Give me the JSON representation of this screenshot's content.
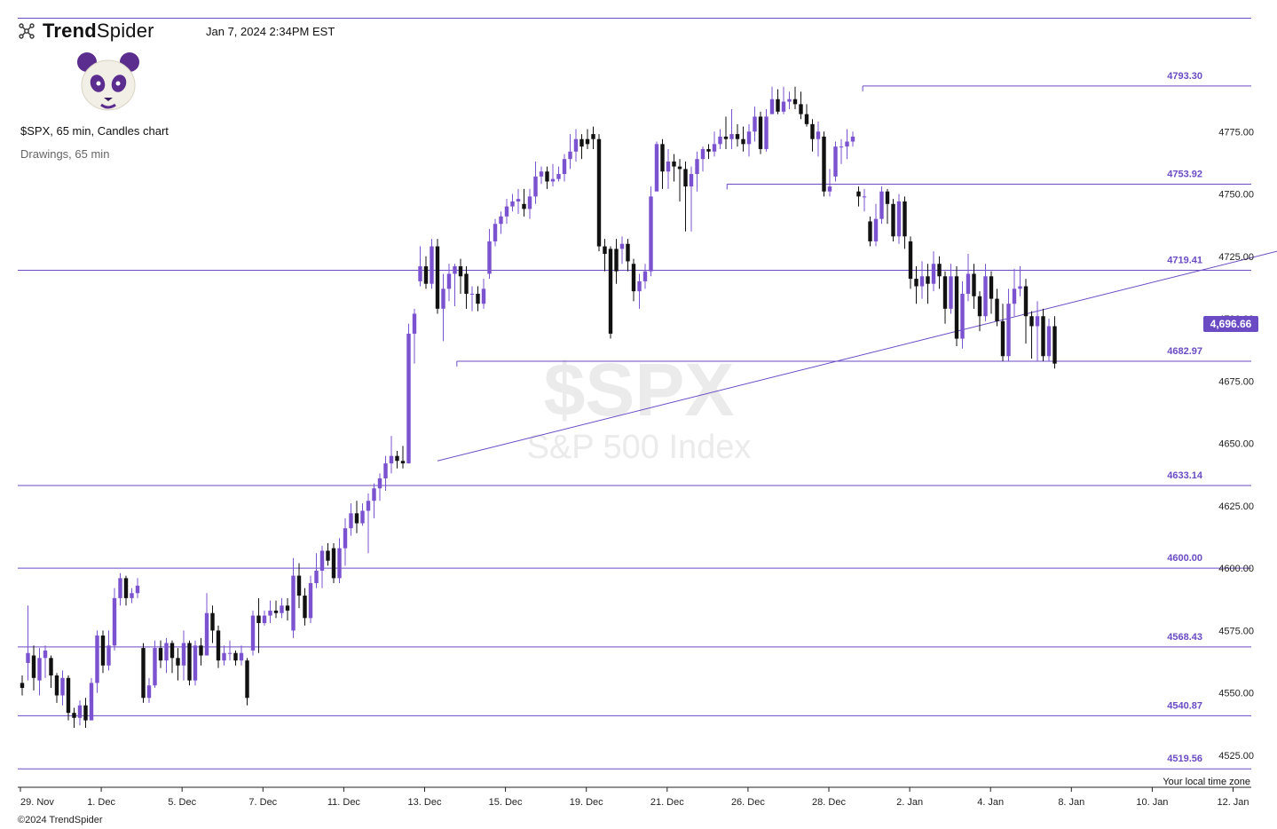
{
  "header": {
    "brand_bold": "Trend",
    "brand_light": "Spider",
    "timestamp": "Jan 7, 2024 2:34PM EST",
    "chart_title": "$SPX, 65 min, Candles chart",
    "drawings_label": "Drawings, 65 min"
  },
  "footer": {
    "copyright": "©2024 TrendSpider",
    "timezone_label": "Your local time zone"
  },
  "watermark": {
    "symbol": "$SPX",
    "name": "S&P 500 Index"
  },
  "last_price": "4,696.66",
  "colors": {
    "accent": "#6a4bc4",
    "bull": "#7b52d0",
    "bear": "#111111",
    "axis": "#222222"
  },
  "icons": {
    "logo": "trendspider-logo-icon",
    "avatar": "panda-avatar-icon"
  },
  "chart_data": {
    "type": "candlestick",
    "interval": "65 min",
    "ylim": [
      4510,
      4810
    ],
    "y_ticks": [
      "4525.00",
      "4550.00",
      "4575.00",
      "4600.00",
      "4625.00",
      "4650.00",
      "4675.00",
      "4700.00",
      "4725.00",
      "4750.00",
      "4775.00"
    ],
    "x_ticks": [
      "29. Nov",
      "1. Dec",
      "5. Dec",
      "7. Dec",
      "11. Dec",
      "13. Dec",
      "15. Dec",
      "19. Dec",
      "21. Dec",
      "26. Dec",
      "28. Dec",
      "2. Jan",
      "4. Jan",
      "8. Jan",
      "10. Jan",
      "12. Jan"
    ],
    "levels": [
      {
        "label": "4793.30",
        "value": 4793.3,
        "x_start": 0.685
      },
      {
        "label": "4753.92",
        "value": 4753.92,
        "x_start": 0.575
      },
      {
        "label": "4719.41",
        "value": 4719.41,
        "x_start": 0.0
      },
      {
        "label": "4682.97",
        "value": 4682.97,
        "x_start": 0.356
      },
      {
        "label": "4633.14",
        "value": 4633.14,
        "x_start": 0.0
      },
      {
        "label": "4600.00",
        "value": 4600.0,
        "x_start": 0.0
      },
      {
        "label": "4568.43",
        "value": 4568.43,
        "x_start": 0.0
      },
      {
        "label": "4540.87",
        "value": 4540.87,
        "x_start": 0.0
      },
      {
        "label": "4519.56",
        "value": 4519.56,
        "x_start": 0.0
      }
    ],
    "trendline": {
      "from": [
        14.4,
        4643
      ],
      "to": [
        57.7,
        4768
      ]
    },
    "candles": [
      [
        4554,
        4552,
        4557,
        4549
      ],
      [
        4562,
        4566,
        4585,
        4555
      ],
      [
        4565,
        4556,
        4569,
        4551
      ],
      [
        4555,
        4564,
        4568,
        4549
      ],
      [
        4564,
        4567,
        4569,
        4556
      ],
      [
        4564,
        4557,
        4565,
        4552
      ],
      [
        4557,
        4549,
        4558,
        4546
      ],
      [
        4549,
        4556,
        4559,
        4545
      ],
      [
        4556,
        4542,
        4557,
        4539
      ],
      [
        4542,
        4540,
        4544,
        4536
      ],
      [
        4540,
        4545,
        4547,
        4537
      ],
      [
        4545,
        4539,
        4548,
        4536
      ],
      [
        4539,
        4554,
        4556,
        4541
      ],
      [
        4554,
        4573,
        4575,
        4550
      ],
      [
        4573,
        4561,
        4575,
        4558
      ],
      [
        4561,
        4569,
        4575,
        4559
      ],
      [
        4569,
        4588,
        4592,
        4567
      ],
      [
        4588,
        4596,
        4598,
        4585
      ],
      [
        4596,
        4588,
        4597,
        4585
      ],
      [
        4588,
        4590,
        4592,
        4586
      ],
      [
        4590,
        4593,
        4596,
        4588
      ],
      [
        4568,
        4548,
        4570,
        4546
      ],
      [
        4548,
        4553,
        4556,
        4546
      ],
      [
        4553,
        4568,
        4571,
        4552
      ],
      [
        4568,
        4563,
        4571,
        4560
      ],
      [
        4563,
        4570,
        4572,
        4558
      ],
      [
        4570,
        4564,
        4571,
        4558
      ],
      [
        4564,
        4561,
        4568,
        4555
      ],
      [
        4561,
        4570,
        4575,
        4555
      ],
      [
        4570,
        4555,
        4571,
        4553
      ],
      [
        4555,
        4569,
        4571,
        4553
      ],
      [
        4569,
        4565,
        4572,
        4561
      ],
      [
        4565,
        4582,
        4590,
        4578
      ],
      [
        4582,
        4575,
        4585,
        4570
      ],
      [
        4575,
        4563,
        4577,
        4560
      ],
      [
        4563,
        4566,
        4569,
        4561
      ],
      [
        4566,
        4566,
        4571,
        4563
      ],
      [
        4566,
        4563,
        4567,
        4561
      ],
      [
        4563,
        4566,
        4569,
        4561
      ],
      [
        4563,
        4548,
        4564,
        4545
      ],
      [
        4567,
        4581,
        4583,
        4565
      ],
      [
        4581,
        4578,
        4588,
        4566
      ],
      [
        4578,
        4581,
        4583,
        4577
      ],
      [
        4581,
        4583,
        4587,
        4578
      ],
      [
        4583,
        4582,
        4587,
        4580
      ],
      [
        4582,
        4585,
        4588,
        4580
      ],
      [
        4585,
        4583,
        4588,
        4579
      ],
      [
        4575,
        4597,
        4604,
        4572
      ],
      [
        4597,
        4589,
        4602,
        4584
      ],
      [
        4589,
        4580,
        4592,
        4577
      ],
      [
        4580,
        4594,
        4597,
        4578
      ],
      [
        4594,
        4599,
        4606,
        4592
      ],
      [
        4599,
        4607,
        4609,
        4592
      ],
      [
        4607,
        4603,
        4610,
        4601
      ],
      [
        4608,
        4596,
        4610,
        4594
      ],
      [
        4596,
        4608,
        4612,
        4594
      ],
      [
        4608,
        4616,
        4620,
        4601
      ],
      [
        4616,
        4622,
        4626,
        4613
      ],
      [
        4622,
        4618,
        4627,
        4614
      ],
      [
        4618,
        4623,
        4626,
        4617
      ],
      [
        4623,
        4627,
        4630,
        4606
      ],
      [
        4627,
        4632,
        4634,
        4620
      ],
      [
        4632,
        4636,
        4638,
        4627
      ],
      [
        4636,
        4642,
        4645,
        4631
      ],
      [
        4642,
        4645,
        4653,
        4638
      ],
      [
        4645,
        4643,
        4647,
        4640
      ],
      [
        4643,
        4642,
        4649,
        4640
      ],
      [
        4642,
        4694,
        4698,
        4642
      ],
      [
        4694,
        4702,
        4704,
        4682
      ],
      [
        4715,
        4721,
        4729,
        4713
      ],
      [
        4721,
        4714,
        4725,
        4712
      ],
      [
        4714,
        4729,
        4732,
        4712
      ],
      [
        4729,
        4704,
        4732,
        4702
      ],
      [
        4704,
        4712,
        4718,
        4691
      ],
      [
        4712,
        4718,
        4722,
        4707
      ],
      [
        4718,
        4721,
        4722,
        4705
      ],
      [
        4721,
        4717,
        4724,
        4710
      ],
      [
        4718,
        4710,
        4721,
        4704
      ],
      [
        4710,
        4710,
        4713,
        4703
      ],
      [
        4710,
        4706,
        4713,
        4703
      ],
      [
        4706,
        4712,
        4716,
        4704
      ],
      [
        4718,
        4731,
        4736,
        4716
      ],
      [
        4731,
        4738,
        4740,
        4729
      ],
      [
        4738,
        4741,
        4743,
        4734
      ],
      [
        4741,
        4745,
        4748,
        4738
      ],
      [
        4745,
        4747,
        4750,
        4743
      ],
      [
        4747,
        4748,
        4752,
        4742
      ],
      [
        4746,
        4744,
        4752,
        4741
      ],
      [
        4744,
        4749,
        4752,
        4740
      ],
      [
        4749,
        4757,
        4763,
        4746
      ],
      [
        4757,
        4759,
        4761,
        4754
      ],
      [
        4759,
        4755,
        4761,
        4752
      ],
      [
        4755,
        4756,
        4762,
        4753
      ],
      [
        4756,
        4758,
        4761,
        4755
      ],
      [
        4758,
        4764,
        4766,
        4755
      ],
      [
        4764,
        4767,
        4774,
        4760
      ],
      [
        4767,
        4772,
        4776,
        4763
      ],
      [
        4772,
        4769,
        4774,
        4764
      ],
      [
        4772,
        4770,
        4776,
        4768
      ],
      [
        4774,
        4772,
        4777,
        4768
      ],
      [
        4772,
        4729,
        4774,
        4727
      ],
      [
        4729,
        4726,
        4732,
        4719
      ],
      [
        4728,
        4694,
        4729,
        4692
      ],
      [
        4728,
        4719,
        4732,
        4714
      ],
      [
        4728,
        4730,
        4733,
        4722
      ],
      [
        4730,
        4723,
        4732,
        4719
      ],
      [
        4722,
        4711,
        4724,
        4707
      ],
      [
        4711,
        4715,
        4718,
        4704
      ],
      [
        4715,
        4719,
        4722,
        4712
      ],
      [
        4719,
        4749,
        4753,
        4717
      ],
      [
        4751,
        4770,
        4771,
        4754
      ],
      [
        4770,
        4759,
        4772,
        4752
      ],
      [
        4759,
        4763,
        4768,
        4752
      ],
      [
        4763,
        4761,
        4766,
        4755
      ],
      [
        4761,
        4760,
        4764,
        4747
      ],
      [
        4760,
        4753,
        4763,
        4735
      ],
      [
        4753,
        4758,
        4761,
        4735
      ],
      [
        4758,
        4764,
        4767,
        4751
      ],
      [
        4764,
        4768,
        4769,
        4759
      ],
      [
        4768,
        4767,
        4770,
        4764
      ],
      [
        4767,
        4770,
        4775,
        4765
      ],
      [
        4770,
        4773,
        4776,
        4768
      ],
      [
        4773,
        4772,
        4781,
        4768
      ],
      [
        4772,
        4774,
        4784,
        4768
      ],
      [
        4774,
        4772,
        4778,
        4769
      ],
      [
        4772,
        4770,
        4777,
        4767
      ],
      [
        4770,
        4775,
        4778,
        4765
      ],
      [
        4775,
        4781,
        4785,
        4771
      ],
      [
        4781,
        4768,
        4783,
        4766
      ],
      [
        4768,
        4781,
        4784,
        4767
      ],
      [
        4782,
        4788,
        4793,
        4784
      ],
      [
        4788,
        4783,
        4792,
        4782
      ],
      [
        4783,
        4787,
        4793,
        4782
      ],
      [
        4787,
        4788,
        4791,
        4784
      ],
      [
        4788,
        4786,
        4793,
        4784
      ],
      [
        4786,
        4782,
        4791,
        4780
      ],
      [
        4782,
        4778,
        4786,
        4777
      ],
      [
        4778,
        4772,
        4780,
        4767
      ],
      [
        4772,
        4775,
        4779,
        4765
      ],
      [
        4773,
        4751,
        4775,
        4749
      ],
      [
        4751,
        4753,
        4760,
        4749
      ],
      [
        4757,
        4769,
        4771,
        4755
      ],
      [
        4769,
        4769,
        4772,
        4762
      ],
      [
        4769,
        4771,
        4776,
        4764
      ],
      [
        4771,
        4773,
        4775,
        4769
      ],
      [
        4751,
        4749,
        4753,
        4745
      ],
      [
        4749,
        4749,
        4752,
        4743
      ],
      [
        4739,
        4731,
        4741,
        4729
      ],
      [
        4731,
        4740,
        4746,
        4729
      ],
      [
        4740,
        4751,
        4753,
        4738
      ],
      [
        4751,
        4746,
        4752,
        4738
      ],
      [
        4746,
        4733,
        4748,
        4731
      ],
      [
        4733,
        4747,
        4750,
        4730
      ],
      [
        4747,
        4733,
        4749,
        4728
      ],
      [
        4731,
        4716,
        4733,
        4712
      ],
      [
        4716,
        4713,
        4721,
        4706
      ],
      [
        4713,
        4717,
        4723,
        4708
      ],
      [
        4717,
        4714,
        4722,
        4706
      ],
      [
        4714,
        4722,
        4727,
        4711
      ],
      [
        4722,
        4717,
        4725,
        4712
      ],
      [
        4717,
        4704,
        4719,
        4698
      ],
      [
        4704,
        4717,
        4722,
        4702
      ],
      [
        4717,
        4692,
        4721,
        4689
      ],
      [
        4692,
        4710,
        4715,
        4688
      ],
      [
        4710,
        4718,
        4726,
        4707
      ],
      [
        4718,
        4709,
        4722,
        4704
      ],
      [
        4709,
        4701,
        4711,
        4695
      ],
      [
        4701,
        4717,
        4722,
        4699
      ],
      [
        4717,
        4708,
        4719,
        4702
      ],
      [
        4708,
        4699,
        4712,
        4697
      ],
      [
        4699,
        4685,
        4706,
        4683
      ],
      [
        4685,
        4706,
        4712,
        4683
      ],
      [
        4706,
        4712,
        4720,
        4701
      ],
      [
        4712,
        4713,
        4721,
        4709
      ],
      [
        4713,
        4701,
        4716,
        4690
      ],
      [
        4701,
        4697,
        4703,
        4684
      ],
      [
        4697,
        4701,
        4707,
        4683
      ],
      [
        4701,
        4685,
        4704,
        4683
      ],
      [
        4685,
        4697,
        4700,
        4683
      ],
      [
        4697,
        4682,
        4701,
        4680
      ]
    ]
  }
}
